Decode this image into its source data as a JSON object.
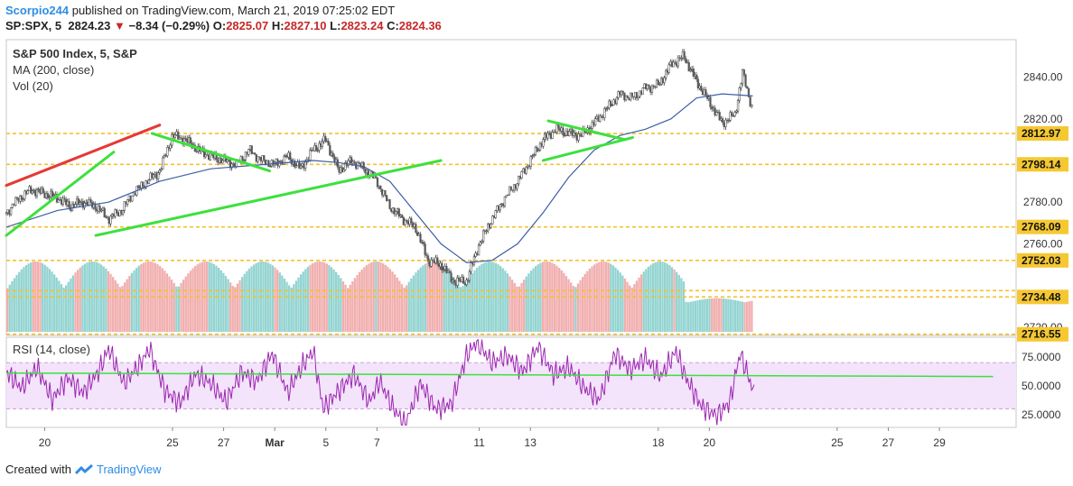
{
  "header": {
    "author": "Scorpio244",
    "published_text": "published on TradingView.com, March 21, 2019 07:25:02 EDT",
    "symbol": "SP:SPX, 5",
    "last": "2824.23",
    "change": "−8.34 (−0.29%)",
    "o_label": "O:",
    "o": "2825.07",
    "h_label": "H:",
    "h": "2827.10",
    "l_label": "L:",
    "l": "2823.24",
    "c_label": "C:",
    "c": "2824.36"
  },
  "legend": {
    "title": "S&P 500 Index, 5, S&P",
    "ma": "MA (200, close)",
    "vol": "Vol (20)",
    "rsi": "RSI (14, close)"
  },
  "footer": {
    "created_with": "Created with",
    "brand": "TradingView"
  },
  "colors": {
    "red_line": "#e53935",
    "green_line": "#3ee03e",
    "ma_line": "#3d5ea7",
    "rsi_line": "#9c27b0",
    "rsi_band": "#f3e3fb",
    "dashed": "#f3c22b",
    "vol_up": "#87cfcc",
    "vol_down": "#f0a6a6"
  },
  "chart_data": [
    {
      "type": "line",
      "subtype": "candlestick-approximation",
      "price_ticks": [
        "2840.00",
        "2820.00",
        "2780.00",
        "2760.00",
        "2720.00"
      ],
      "ylim": [
        2716,
        2858
      ],
      "x_tick_labels": [
        "20",
        "25",
        "27",
        "Mar",
        "5",
        "7",
        "11",
        "13",
        "18",
        "20",
        "25",
        "27",
        "29"
      ],
      "x_tick_values": [
        1.5,
        6.5,
        8.5,
        10.5,
        12.5,
        14.5,
        18.5,
        20.5,
        25.5,
        27.5,
        32.5,
        34.5,
        36.5
      ],
      "xlim": [
        0,
        39.5
      ],
      "horizontal_levels": [
        {
          "value": 2812.97,
          "label": "2812.97"
        },
        {
          "value": 2798.14,
          "label": "2798.14"
        },
        {
          "value": 2768.09,
          "label": "2768.09"
        },
        {
          "value": 2752.03,
          "label": "2752.03"
        },
        {
          "value": 2734.48,
          "label": "2734.48"
        },
        {
          "value": 2716.55,
          "label": "2716.55"
        }
      ],
      "extra_levels": [
        2737.5
      ],
      "price_series": [
        [
          0,
          2775
        ],
        [
          0.5,
          2782
        ],
        [
          1,
          2786
        ],
        [
          1.5,
          2784
        ],
        [
          2,
          2782
        ],
        [
          2.5,
          2778
        ],
        [
          3,
          2780
        ],
        [
          3.5,
          2778
        ],
        [
          4,
          2772
        ],
        [
          4.5,
          2776
        ],
        [
          5,
          2785
        ],
        [
          5.5,
          2790
        ],
        [
          6,
          2795
        ],
        [
          6.5,
          2812
        ],
        [
          7,
          2810
        ],
        [
          7.5,
          2805
        ],
        [
          8,
          2802
        ],
        [
          8.5,
          2800
        ],
        [
          9,
          2798
        ],
        [
          9.5,
          2805
        ],
        [
          10,
          2800
        ],
        [
          10.5,
          2798
        ],
        [
          11,
          2802
        ],
        [
          11.5,
          2796
        ],
        [
          12,
          2805
        ],
        [
          12.5,
          2810
        ],
        [
          13,
          2795
        ],
        [
          13.5,
          2800
        ],
        [
          14,
          2796
        ],
        [
          14.5,
          2790
        ],
        [
          15,
          2778
        ],
        [
          15.5,
          2772
        ],
        [
          16,
          2768
        ],
        [
          16.5,
          2752
        ],
        [
          17,
          2750
        ],
        [
          17.5,
          2742
        ],
        [
          18,
          2742
        ],
        [
          18.5,
          2760
        ],
        [
          19,
          2772
        ],
        [
          19.5,
          2782
        ],
        [
          20,
          2790
        ],
        [
          20.5,
          2800
        ],
        [
          21,
          2810
        ],
        [
          21.5,
          2815
        ],
        [
          22,
          2813
        ],
        [
          22.5,
          2812
        ],
        [
          23,
          2818
        ],
        [
          23.5,
          2825
        ],
        [
          24,
          2832
        ],
        [
          24.5,
          2830
        ],
        [
          25,
          2835
        ],
        [
          25.5,
          2836
        ],
        [
          26,
          2846
        ],
        [
          26.5,
          2850
        ],
        [
          27,
          2838
        ],
        [
          27.5,
          2828
        ],
        [
          28,
          2818
        ],
        [
          28.5,
          2822
        ],
        [
          28.8,
          2842
        ],
        [
          29.2,
          2824
        ]
      ],
      "ma_series": [
        [
          0,
          2768
        ],
        [
          2,
          2776
        ],
        [
          4,
          2780
        ],
        [
          6,
          2790
        ],
        [
          8,
          2796
        ],
        [
          10,
          2798
        ],
        [
          12,
          2800
        ],
        [
          13,
          2799
        ],
        [
          14,
          2797
        ],
        [
          15,
          2790
        ],
        [
          16,
          2775
        ],
        [
          17,
          2760
        ],
        [
          18,
          2751
        ],
        [
          19,
          2752
        ],
        [
          20,
          2760
        ],
        [
          21,
          2775
        ],
        [
          22,
          2792
        ],
        [
          23,
          2805
        ],
        [
          24,
          2812
        ],
        [
          25,
          2815
        ],
        [
          26,
          2820
        ],
        [
          27,
          2830
        ],
        [
          28,
          2832
        ],
        [
          29.2,
          2831
        ]
      ],
      "trend_lines": [
        {
          "color": "red",
          "points": [
            [
              0,
              2788
            ],
            [
              6,
              2817
            ]
          ]
        },
        {
          "color": "green",
          "points": [
            [
              0,
              2764
            ],
            [
              4.2,
              2804
            ]
          ]
        },
        {
          "color": "green",
          "points": [
            [
              5.7,
              2813
            ],
            [
              10.3,
              2795
            ]
          ]
        },
        {
          "color": "green",
          "points": [
            [
              3.5,
              2764
            ],
            [
              17,
              2800
            ]
          ]
        },
        {
          "color": "green",
          "points": [
            [
              21.2,
              2819
            ],
            [
              24.2,
              2810
            ]
          ]
        },
        {
          "color": "green",
          "points": [
            [
              21,
              2800
            ],
            [
              24.5,
              2811
            ]
          ]
        }
      ]
    },
    {
      "type": "bar",
      "name": "Volume",
      "xlim": [
        0,
        39.5
      ],
      "bars_end_x": 29.2,
      "vol_regions": [
        [
          0,
          26.5,
          0.62
        ],
        [
          26.5,
          29.2,
          0.42
        ]
      ]
    },
    {
      "type": "line",
      "name": "RSI",
      "ylim": [
        14,
        92
      ],
      "ticks": [
        "75.0000",
        "50.0000",
        "25.0000"
      ],
      "tick_values": [
        75,
        50,
        25
      ],
      "band": [
        30,
        70
      ],
      "signal_line": [
        [
          0,
          61
        ],
        [
          38.6,
          58
        ]
      ],
      "rsi_series": [
        [
          0,
          62
        ],
        [
          0.6,
          48
        ],
        [
          1.2,
          66
        ],
        [
          1.8,
          38
        ],
        [
          2.4,
          57
        ],
        [
          3,
          44
        ],
        [
          3.6,
          62
        ],
        [
          4,
          82
        ],
        [
          4.6,
          52
        ],
        [
          5.2,
          68
        ],
        [
          5.6,
          82
        ],
        [
          6.2,
          46
        ],
        [
          6.8,
          35
        ],
        [
          7.4,
          60
        ],
        [
          8,
          52
        ],
        [
          8.6,
          36
        ],
        [
          9.2,
          62
        ],
        [
          9.8,
          54
        ],
        [
          10.4,
          78
        ],
        [
          11,
          44
        ],
        [
          11.6,
          68
        ],
        [
          12,
          80
        ],
        [
          12.4,
          30
        ],
        [
          13,
          46
        ],
        [
          13.6,
          60
        ],
        [
          14.2,
          36
        ],
        [
          14.6,
          54
        ],
        [
          15.1,
          32
        ],
        [
          15.6,
          16
        ],
        [
          16.2,
          52
        ],
        [
          16.8,
          30
        ],
        [
          17.4,
          34
        ],
        [
          18,
          76
        ],
        [
          18.4,
          88
        ],
        [
          19,
          70
        ],
        [
          19.6,
          76
        ],
        [
          20.2,
          62
        ],
        [
          20.8,
          84
        ],
        [
          21.4,
          60
        ],
        [
          22,
          66
        ],
        [
          22.6,
          48
        ],
        [
          23.2,
          38
        ],
        [
          23.8,
          78
        ],
        [
          24.4,
          64
        ],
        [
          25,
          74
        ],
        [
          25.6,
          58
        ],
        [
          26.2,
          80
        ],
        [
          26.6,
          56
        ],
        [
          27.2,
          32
        ],
        [
          27.8,
          24
        ],
        [
          28.3,
          36
        ],
        [
          28.7,
          78
        ],
        [
          29,
          60
        ],
        [
          29.3,
          40
        ]
      ]
    }
  ]
}
